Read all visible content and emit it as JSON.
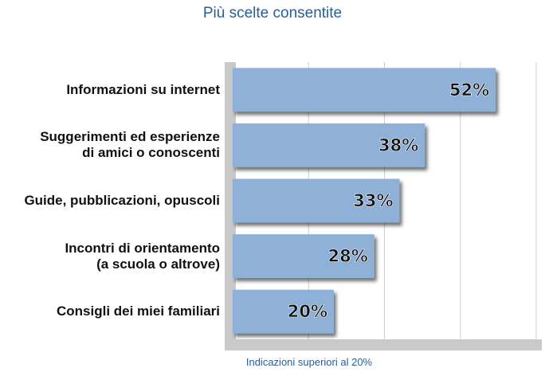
{
  "chart_data": {
    "type": "bar",
    "orientation": "horizontal",
    "title": "Più scelte consentite",
    "footnote": "Indicazioni superiori al 20%",
    "categories": [
      "Informazioni su internet",
      "Suggerimenti ed esperienze\ndi amici o conoscenti",
      "Guide, pubblicazioni, opuscoli",
      "Incontri di orientamento\n(a scuola o altrove)",
      "Consigli dei miei familiari"
    ],
    "values": [
      52,
      38,
      33,
      28,
      20
    ],
    "value_labels": [
      "52%",
      "38%",
      "33%",
      "28%",
      "20%"
    ],
    "color": "#8fb1d8",
    "xlim": [
      0,
      60
    ],
    "xticks": [
      15,
      30,
      45,
      60
    ],
    "grid": true
  }
}
